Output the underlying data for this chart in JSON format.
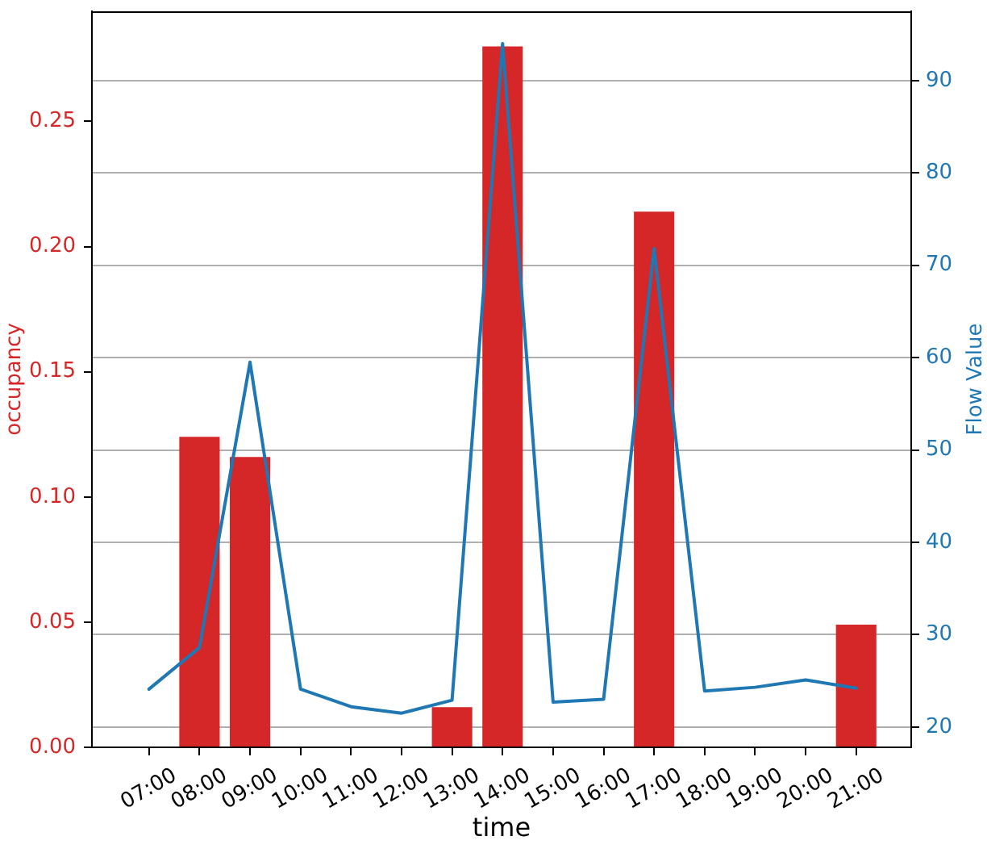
{
  "chart_data": {
    "type": "bar",
    "xlabel": "time",
    "ylabel": "occupancy",
    "y2label": "Flow Value",
    "xlim": [
      5.87,
      22.09
    ],
    "xticks": [
      {
        "value": 7,
        "label": "07:00"
      },
      {
        "value": 8,
        "label": "08:00"
      },
      {
        "value": 9,
        "label": "09:00"
      },
      {
        "value": 10,
        "label": "10:00"
      },
      {
        "value": 11,
        "label": "11:00"
      },
      {
        "value": 12,
        "label": "12:00"
      },
      {
        "value": 13,
        "label": "13:00"
      },
      {
        "value": 14,
        "label": "14:00"
      },
      {
        "value": 15,
        "label": "15:00"
      },
      {
        "value": 16,
        "label": "16:00"
      },
      {
        "value": 17,
        "label": "17:00"
      },
      {
        "value": 18,
        "label": "18:00"
      },
      {
        "value": 19,
        "label": "19:00"
      },
      {
        "value": 20,
        "label": "20:00"
      },
      {
        "value": 21,
        "label": "21:00"
      }
    ],
    "ylim": [
      0,
      0.294
    ],
    "yticks": [
      {
        "value": 0,
        "label": "0.00"
      },
      0.05,
      {
        "value": 0.1,
        "label": "0.10"
      },
      0.15,
      {
        "value": 0.2,
        "label": "0.20"
      },
      0.25
    ],
    "y2lim": [
      17.8,
      97.5
    ],
    "y2ticks": [
      20,
      30,
      40,
      50,
      60,
      70,
      80,
      90
    ],
    "grid": "y2",
    "series": [
      {
        "color": "#d62728",
        "x": [
          8,
          9,
          13,
          14,
          17,
          21
        ],
        "values": [
          0.124,
          0.116,
          0.016,
          0.28,
          0.214,
          0.049
        ]
      },
      {
        "type": "line",
        "axis": "y2",
        "color": "#1f77b4",
        "x": [
          7,
          8,
          9,
          10,
          11,
          12,
          13,
          14,
          15,
          16,
          17,
          18,
          19,
          20,
          21
        ],
        "values": [
          24.1,
          28.6,
          59.5,
          24.1,
          22.2,
          21.5,
          22.9,
          94.0,
          22.7,
          23.0,
          71.8,
          23.9,
          24.3,
          25.1,
          24.2
        ]
      }
    ]
  }
}
